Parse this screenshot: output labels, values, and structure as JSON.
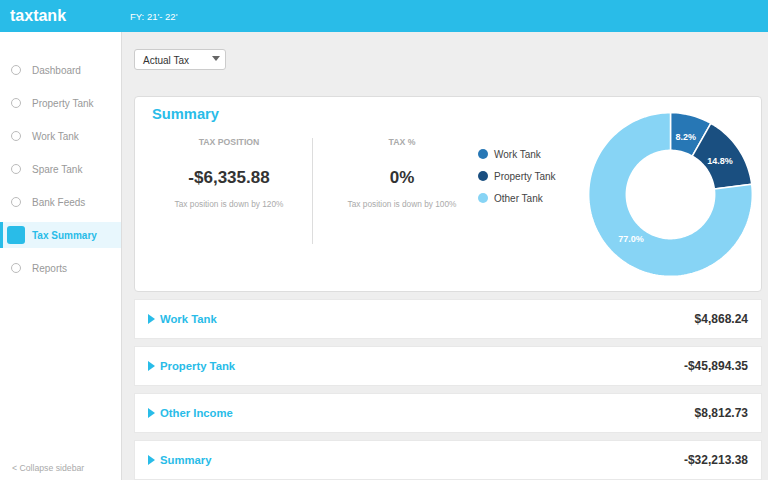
{
  "chart_data": {
    "type": "pie",
    "title": "Summary",
    "categories": [
      "Work Tank",
      "Property Tank",
      "Other Tank"
    ],
    "values": [
      8.2,
      14.8,
      77.0
    ],
    "value_labels": [
      "8.2%",
      "14.8%",
      "77.0%"
    ],
    "colors": [
      "#2777b5",
      "#1a4f80",
      "#87d4f5"
    ],
    "data_labels": true,
    "annotations": [
      "taxtank",
      "FY: 21'- 22'",
      "Dashboard",
      "Property Tank",
      "Work Tank",
      "Spare Tank",
      "Bank Feeds",
      "Tax Summary",
      "Reports",
      "< Collapse sidebar",
      "Actual Tax",
      "TAX POSITION",
      "-$6,335.88",
      "Tax position is down by 120%",
      "TAX %",
      "0%",
      "Tax position is down by 100%",
      "Work Tank",
      "$4,868.24",
      "Property Tank",
      "-$45,894.35",
      "Other Income",
      "$8,812.73",
      "Summary",
      "-$32,213.38"
    ]
  }
}
